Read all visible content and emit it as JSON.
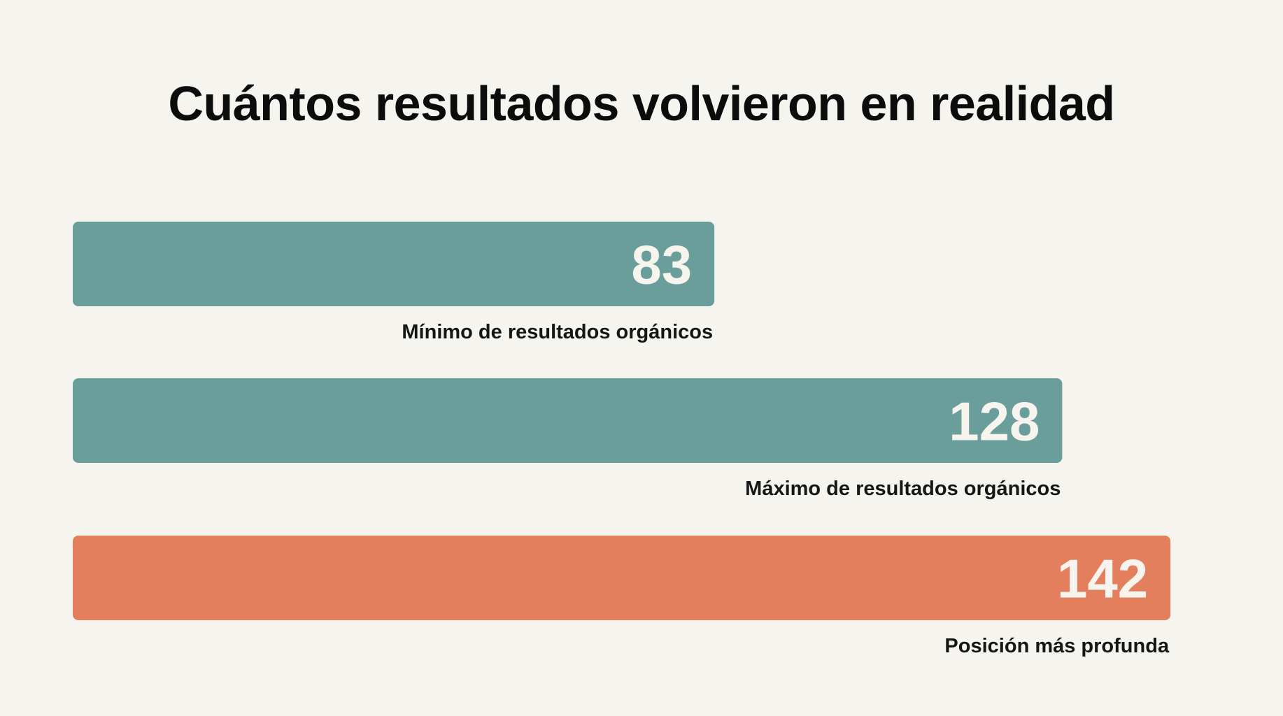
{
  "chart_data": {
    "type": "bar",
    "orientation": "horizontal",
    "title": "Cuántos resultados volvieron en realidad",
    "categories": [
      "Mínimo de resultados orgánicos",
      "Máximo de resultados orgánicos",
      "Posición más profunda"
    ],
    "values": [
      83,
      128,
      142
    ],
    "colors": [
      "#6a9e9a",
      "#6a9e9a",
      "#e47f5e"
    ],
    "grid": false,
    "legend": "none"
  }
}
